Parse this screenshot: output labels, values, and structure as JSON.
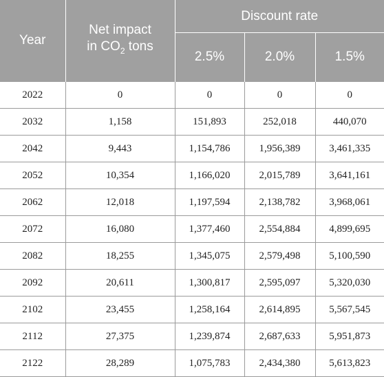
{
  "table": {
    "headers": {
      "year": "Year",
      "net_impact_line1": "Net impact",
      "net_impact_line2_prefix": "in CO",
      "net_impact_subscript": "2",
      "net_impact_line2_suffix": " tons",
      "discount_rate": "Discount rate",
      "rates": [
        "2.5%",
        "2.0%",
        "1.5%"
      ]
    },
    "rows": [
      [
        "2022",
        "0",
        "0",
        "0",
        "0"
      ],
      [
        "2032",
        "1,158",
        "151,893",
        "252,018",
        "440,070"
      ],
      [
        "2042",
        "9,443",
        "1,154,786",
        "1,956,389",
        "3,461,335"
      ],
      [
        "2052",
        "10,354",
        "1,166,020",
        "2,015,789",
        "3,641,161"
      ],
      [
        "2062",
        "12,018",
        "1,197,594",
        "2,138,782",
        "3,968,061"
      ],
      [
        "2072",
        "16,080",
        "1,377,460",
        "2,554,884",
        "4,899,695"
      ],
      [
        "2082",
        "18,255",
        "1,345,075",
        "2,579,498",
        "5,100,590"
      ],
      [
        "2092",
        "20,611",
        "1,300,817",
        "2,595,097",
        "5,320,030"
      ],
      [
        "2102",
        "23,455",
        "1,258,164",
        "2,614,895",
        "5,567,545"
      ],
      [
        "2112",
        "27,375",
        "1,239,874",
        "2,687,633",
        "5,951,873"
      ],
      [
        "2122",
        "28,289",
        "1,075,783",
        "2,434,380",
        "5,613,823"
      ]
    ]
  }
}
